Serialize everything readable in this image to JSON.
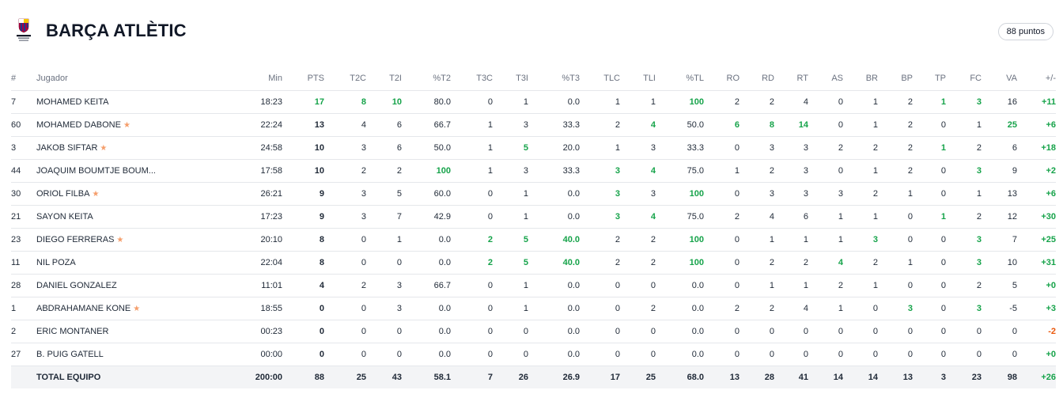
{
  "team": {
    "name": "BARÇA ATLÈTIC",
    "points_badge": "88 puntos",
    "logo_text": "BARÇA ATLÈTIC"
  },
  "colors": {
    "positive": "#16a34a",
    "negative": "#ea580c",
    "star": "#f59e6b"
  },
  "columns": [
    "#",
    "Jugador",
    "Min",
    "PTS",
    "T2C",
    "T2I",
    "%T2",
    "T3C",
    "T3I",
    "%T3",
    "TLC",
    "TLI",
    "%TL",
    "RO",
    "RD",
    "RT",
    "AS",
    "BR",
    "BP",
    "TP",
    "FC",
    "VA",
    "+/-"
  ],
  "rows": [
    {
      "num": "7",
      "name": "MOHAMED KEITA",
      "star": false,
      "min": "18:23",
      "pts": "17",
      "t2c": "8",
      "t2i": "10",
      "pt2": "80.0",
      "t3c": "0",
      "t3i": "1",
      "pt3": "0.0",
      "tlc": "1",
      "tli": "1",
      "ptl": "100",
      "ro": "2",
      "rd": "2",
      "rt": "4",
      "as": "0",
      "br": "1",
      "bp": "2",
      "tp": "1",
      "fc": "3",
      "va": "16",
      "pm": "+11",
      "hl": [
        "pts",
        "t2c",
        "t2i",
        "ptl",
        "tp",
        "fc"
      ]
    },
    {
      "num": "60",
      "name": "MOHAMED DABONE",
      "star": true,
      "min": "22:24",
      "pts": "13",
      "t2c": "4",
      "t2i": "6",
      "pt2": "66.7",
      "t3c": "1",
      "t3i": "3",
      "pt3": "33.3",
      "tlc": "2",
      "tli": "4",
      "ptl": "50.0",
      "ro": "6",
      "rd": "8",
      "rt": "14",
      "as": "0",
      "br": "1",
      "bp": "2",
      "tp": "0",
      "fc": "1",
      "va": "25",
      "pm": "+6",
      "hl": [
        "tli",
        "ro",
        "rd",
        "rt",
        "va"
      ]
    },
    {
      "num": "3",
      "name": "JAKOB SIFTAR",
      "star": true,
      "min": "24:58",
      "pts": "10",
      "t2c": "3",
      "t2i": "6",
      "pt2": "50.0",
      "t3c": "1",
      "t3i": "5",
      "pt3": "20.0",
      "tlc": "1",
      "tli": "3",
      "ptl": "33.3",
      "ro": "0",
      "rd": "3",
      "rt": "3",
      "as": "2",
      "br": "2",
      "bp": "2",
      "tp": "1",
      "fc": "2",
      "va": "6",
      "pm": "+18",
      "hl": [
        "t3i",
        "tp"
      ]
    },
    {
      "num": "44",
      "name": "JOAQUIM BOUMTJE BOUM...",
      "star": false,
      "min": "17:58",
      "pts": "10",
      "t2c": "2",
      "t2i": "2",
      "pt2": "100",
      "t3c": "1",
      "t3i": "3",
      "pt3": "33.3",
      "tlc": "3",
      "tli": "4",
      "ptl": "75.0",
      "ro": "1",
      "rd": "2",
      "rt": "3",
      "as": "0",
      "br": "1",
      "bp": "2",
      "tp": "0",
      "fc": "3",
      "va": "9",
      "pm": "+2",
      "hl": [
        "pt2",
        "tlc",
        "tli",
        "fc"
      ]
    },
    {
      "num": "30",
      "name": "ORIOL FILBA",
      "star": true,
      "min": "26:21",
      "pts": "9",
      "t2c": "3",
      "t2i": "5",
      "pt2": "60.0",
      "t3c": "0",
      "t3i": "1",
      "pt3": "0.0",
      "tlc": "3",
      "tli": "3",
      "ptl": "100",
      "ro": "0",
      "rd": "3",
      "rt": "3",
      "as": "3",
      "br": "2",
      "bp": "1",
      "tp": "0",
      "fc": "1",
      "va": "13",
      "pm": "+6",
      "hl": [
        "tlc",
        "ptl"
      ]
    },
    {
      "num": "21",
      "name": "SAYON KEITA",
      "star": false,
      "min": "17:23",
      "pts": "9",
      "t2c": "3",
      "t2i": "7",
      "pt2": "42.9",
      "t3c": "0",
      "t3i": "1",
      "pt3": "0.0",
      "tlc": "3",
      "tli": "4",
      "ptl": "75.0",
      "ro": "2",
      "rd": "4",
      "rt": "6",
      "as": "1",
      "br": "1",
      "bp": "0",
      "tp": "1",
      "fc": "2",
      "va": "12",
      "pm": "+30",
      "hl": [
        "tlc",
        "tli",
        "tp"
      ]
    },
    {
      "num": "23",
      "name": "DIEGO FERRERAS",
      "star": true,
      "min": "20:10",
      "pts": "8",
      "t2c": "0",
      "t2i": "1",
      "pt2": "0.0",
      "t3c": "2",
      "t3i": "5",
      "pt3": "40.0",
      "tlc": "2",
      "tli": "2",
      "ptl": "100",
      "ro": "0",
      "rd": "1",
      "rt": "1",
      "as": "1",
      "br": "3",
      "bp": "0",
      "tp": "0",
      "fc": "3",
      "va": "7",
      "pm": "+25",
      "hl": [
        "t3c",
        "t3i",
        "pt3",
        "ptl",
        "br",
        "fc"
      ]
    },
    {
      "num": "11",
      "name": "NIL POZA",
      "star": false,
      "min": "22:04",
      "pts": "8",
      "t2c": "0",
      "t2i": "0",
      "pt2": "0.0",
      "t3c": "2",
      "t3i": "5",
      "pt3": "40.0",
      "tlc": "2",
      "tli": "2",
      "ptl": "100",
      "ro": "0",
      "rd": "2",
      "rt": "2",
      "as": "4",
      "br": "2",
      "bp": "1",
      "tp": "0",
      "fc": "3",
      "va": "10",
      "pm": "+31",
      "hl": [
        "t3c",
        "t3i",
        "pt3",
        "ptl",
        "as",
        "fc"
      ]
    },
    {
      "num": "28",
      "name": "DANIEL GONZALEZ",
      "star": false,
      "min": "11:01",
      "pts": "4",
      "t2c": "2",
      "t2i": "3",
      "pt2": "66.7",
      "t3c": "0",
      "t3i": "1",
      "pt3": "0.0",
      "tlc": "0",
      "tli": "0",
      "ptl": "0.0",
      "ro": "0",
      "rd": "1",
      "rt": "1",
      "as": "2",
      "br": "1",
      "bp": "0",
      "tp": "0",
      "fc": "2",
      "va": "5",
      "pm": "+0",
      "hl": []
    },
    {
      "num": "1",
      "name": "ABDRAHAMANE KONE",
      "star": true,
      "min": "18:55",
      "pts": "0",
      "t2c": "0",
      "t2i": "3",
      "pt2": "0.0",
      "t3c": "0",
      "t3i": "1",
      "pt3": "0.0",
      "tlc": "0",
      "tli": "2",
      "ptl": "0.0",
      "ro": "2",
      "rd": "2",
      "rt": "4",
      "as": "1",
      "br": "0",
      "bp": "3",
      "tp": "0",
      "fc": "3",
      "va": "-5",
      "pm": "+3",
      "hl": [
        "bp",
        "fc"
      ]
    },
    {
      "num": "2",
      "name": "ERIC MONTANER",
      "star": false,
      "min": "00:23",
      "pts": "0",
      "t2c": "0",
      "t2i": "0",
      "pt2": "0.0",
      "t3c": "0",
      "t3i": "0",
      "pt3": "0.0",
      "tlc": "0",
      "tli": "0",
      "ptl": "0.0",
      "ro": "0",
      "rd": "0",
      "rt": "0",
      "as": "0",
      "br": "0",
      "bp": "0",
      "tp": "0",
      "fc": "0",
      "va": "0",
      "pm": "-2",
      "hl": []
    },
    {
      "num": "27",
      "name": "B. PUIG GATELL",
      "star": false,
      "min": "00:00",
      "pts": "0",
      "t2c": "0",
      "t2i": "0",
      "pt2": "0.0",
      "t3c": "0",
      "t3i": "0",
      "pt3": "0.0",
      "tlc": "0",
      "tli": "0",
      "ptl": "0.0",
      "ro": "0",
      "rd": "0",
      "rt": "0",
      "as": "0",
      "br": "0",
      "bp": "0",
      "tp": "0",
      "fc": "0",
      "va": "0",
      "pm": "+0",
      "hl": []
    }
  ],
  "total": {
    "num": "",
    "name": "TOTAL EQUIPO",
    "min": "200:00",
    "pts": "88",
    "t2c": "25",
    "t2i": "43",
    "pt2": "58.1",
    "t3c": "7",
    "t3i": "26",
    "pt3": "26.9",
    "tlc": "17",
    "tli": "25",
    "ptl": "68.0",
    "ro": "13",
    "rd": "28",
    "rt": "41",
    "as": "14",
    "br": "14",
    "bp": "13",
    "tp": "3",
    "fc": "23",
    "va": "98",
    "pm": "+26"
  }
}
